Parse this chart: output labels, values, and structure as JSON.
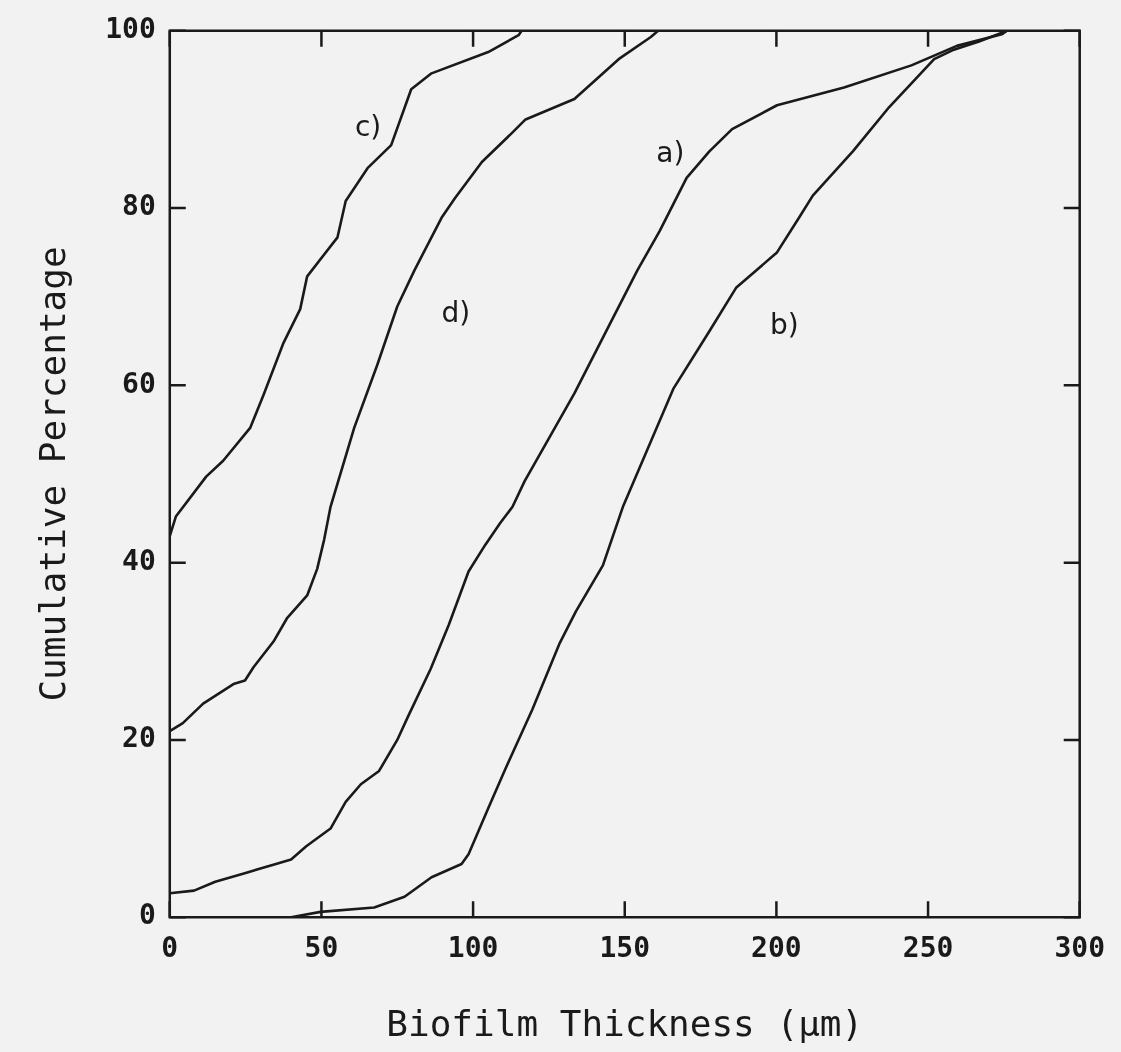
{
  "chart_data": {
    "type": "line",
    "xlabel": "Biofilm Thickness (μm)",
    "ylabel": "Cumulative Percentage",
    "xlim": [
      0,
      300
    ],
    "ylim": [
      0,
      100
    ],
    "xticks": [
      0,
      50,
      100,
      150,
      200,
      250,
      300
    ],
    "yticks": [
      0,
      20,
      40,
      60,
      80,
      100
    ],
    "grid": false,
    "legend": false,
    "marker": "none",
    "line_style": "solid",
    "series": [
      {
        "name": "a)",
        "color": "#1a1a1a",
        "x": [
          0,
          8,
          15,
          25,
          35,
          40,
          45,
          53,
          58,
          63,
          69,
          75,
          78.5,
          86,
          92,
          98.5,
          104,
          109,
          113,
          117,
          133.4,
          145.2,
          154.2,
          161.5,
          170.4,
          177.9,
          185.4,
          200.2,
          222.3,
          244.5,
          259.5,
          274.3,
          276
        ],
        "values": [
          2.7,
          3,
          4,
          5,
          6,
          6.5,
          8,
          10,
          13,
          15,
          16.5,
          20,
          22.6,
          28,
          33,
          39,
          42,
          44.5,
          46.3,
          49.2,
          59.1,
          67,
          73,
          77.4,
          83.4,
          86.4,
          88.9,
          91.6,
          93.6,
          96.1,
          98.3,
          99.6,
          100
        ]
      },
      {
        "name": "b)",
        "color": "#1a1a1a",
        "x": [
          40,
          49.7,
          67.4,
          77.4,
          86.3,
          96.2,
          98.5,
          105,
          110.6,
          119.5,
          128.4,
          133.9,
          142.8,
          149.4,
          166,
          177.9,
          186.7,
          200.2,
          207.6,
          212,
          225.2,
          237.2,
          252,
          258,
          266.8,
          276
        ],
        "values": [
          0,
          0.6,
          1.1,
          2.3,
          4.5,
          6,
          7.1,
          12.3,
          16.7,
          23.4,
          30.8,
          34.5,
          39.7,
          46.3,
          59.6,
          66.1,
          71,
          75,
          79,
          81.4,
          86.4,
          91.4,
          96.8,
          97.8,
          98.8,
          100
        ]
      },
      {
        "name": "c)",
        "color": "#1a1a1a",
        "x": [
          0,
          2,
          12,
          17.6,
          26.5,
          30.9,
          37.5,
          43,
          45.3,
          55.3,
          58,
          65.2,
          73,
          79.6,
          86.3,
          105,
          115,
          116
        ],
        "values": [
          43,
          45.2,
          49.7,
          51.5,
          55.2,
          58.9,
          64.8,
          68.6,
          72.3,
          76.7,
          80.8,
          84.5,
          87.1,
          93.4,
          95.2,
          97.6,
          99.5,
          100
        ]
      },
      {
        "name": "d)",
        "color": "#1a1a1a",
        "x": [
          0,
          4.3,
          11,
          21,
          24.8,
          27.6,
          34.2,
          38.6,
          45.3,
          48.6,
          50.9,
          53,
          60.8,
          68.4,
          75,
          80.7,
          89.6,
          94,
          102.9,
          112.6,
          117.3,
          133.4,
          148,
          158.6,
          161
        ],
        "values": [
          21,
          21.9,
          24.1,
          26.3,
          26.7,
          28.2,
          31.1,
          33.7,
          36.3,
          39.3,
          42.6,
          46.3,
          55.2,
          62.3,
          68.9,
          73,
          78.9,
          81.1,
          85.2,
          88.4,
          90,
          92.3,
          96.8,
          99.3,
          100
        ]
      }
    ]
  }
}
